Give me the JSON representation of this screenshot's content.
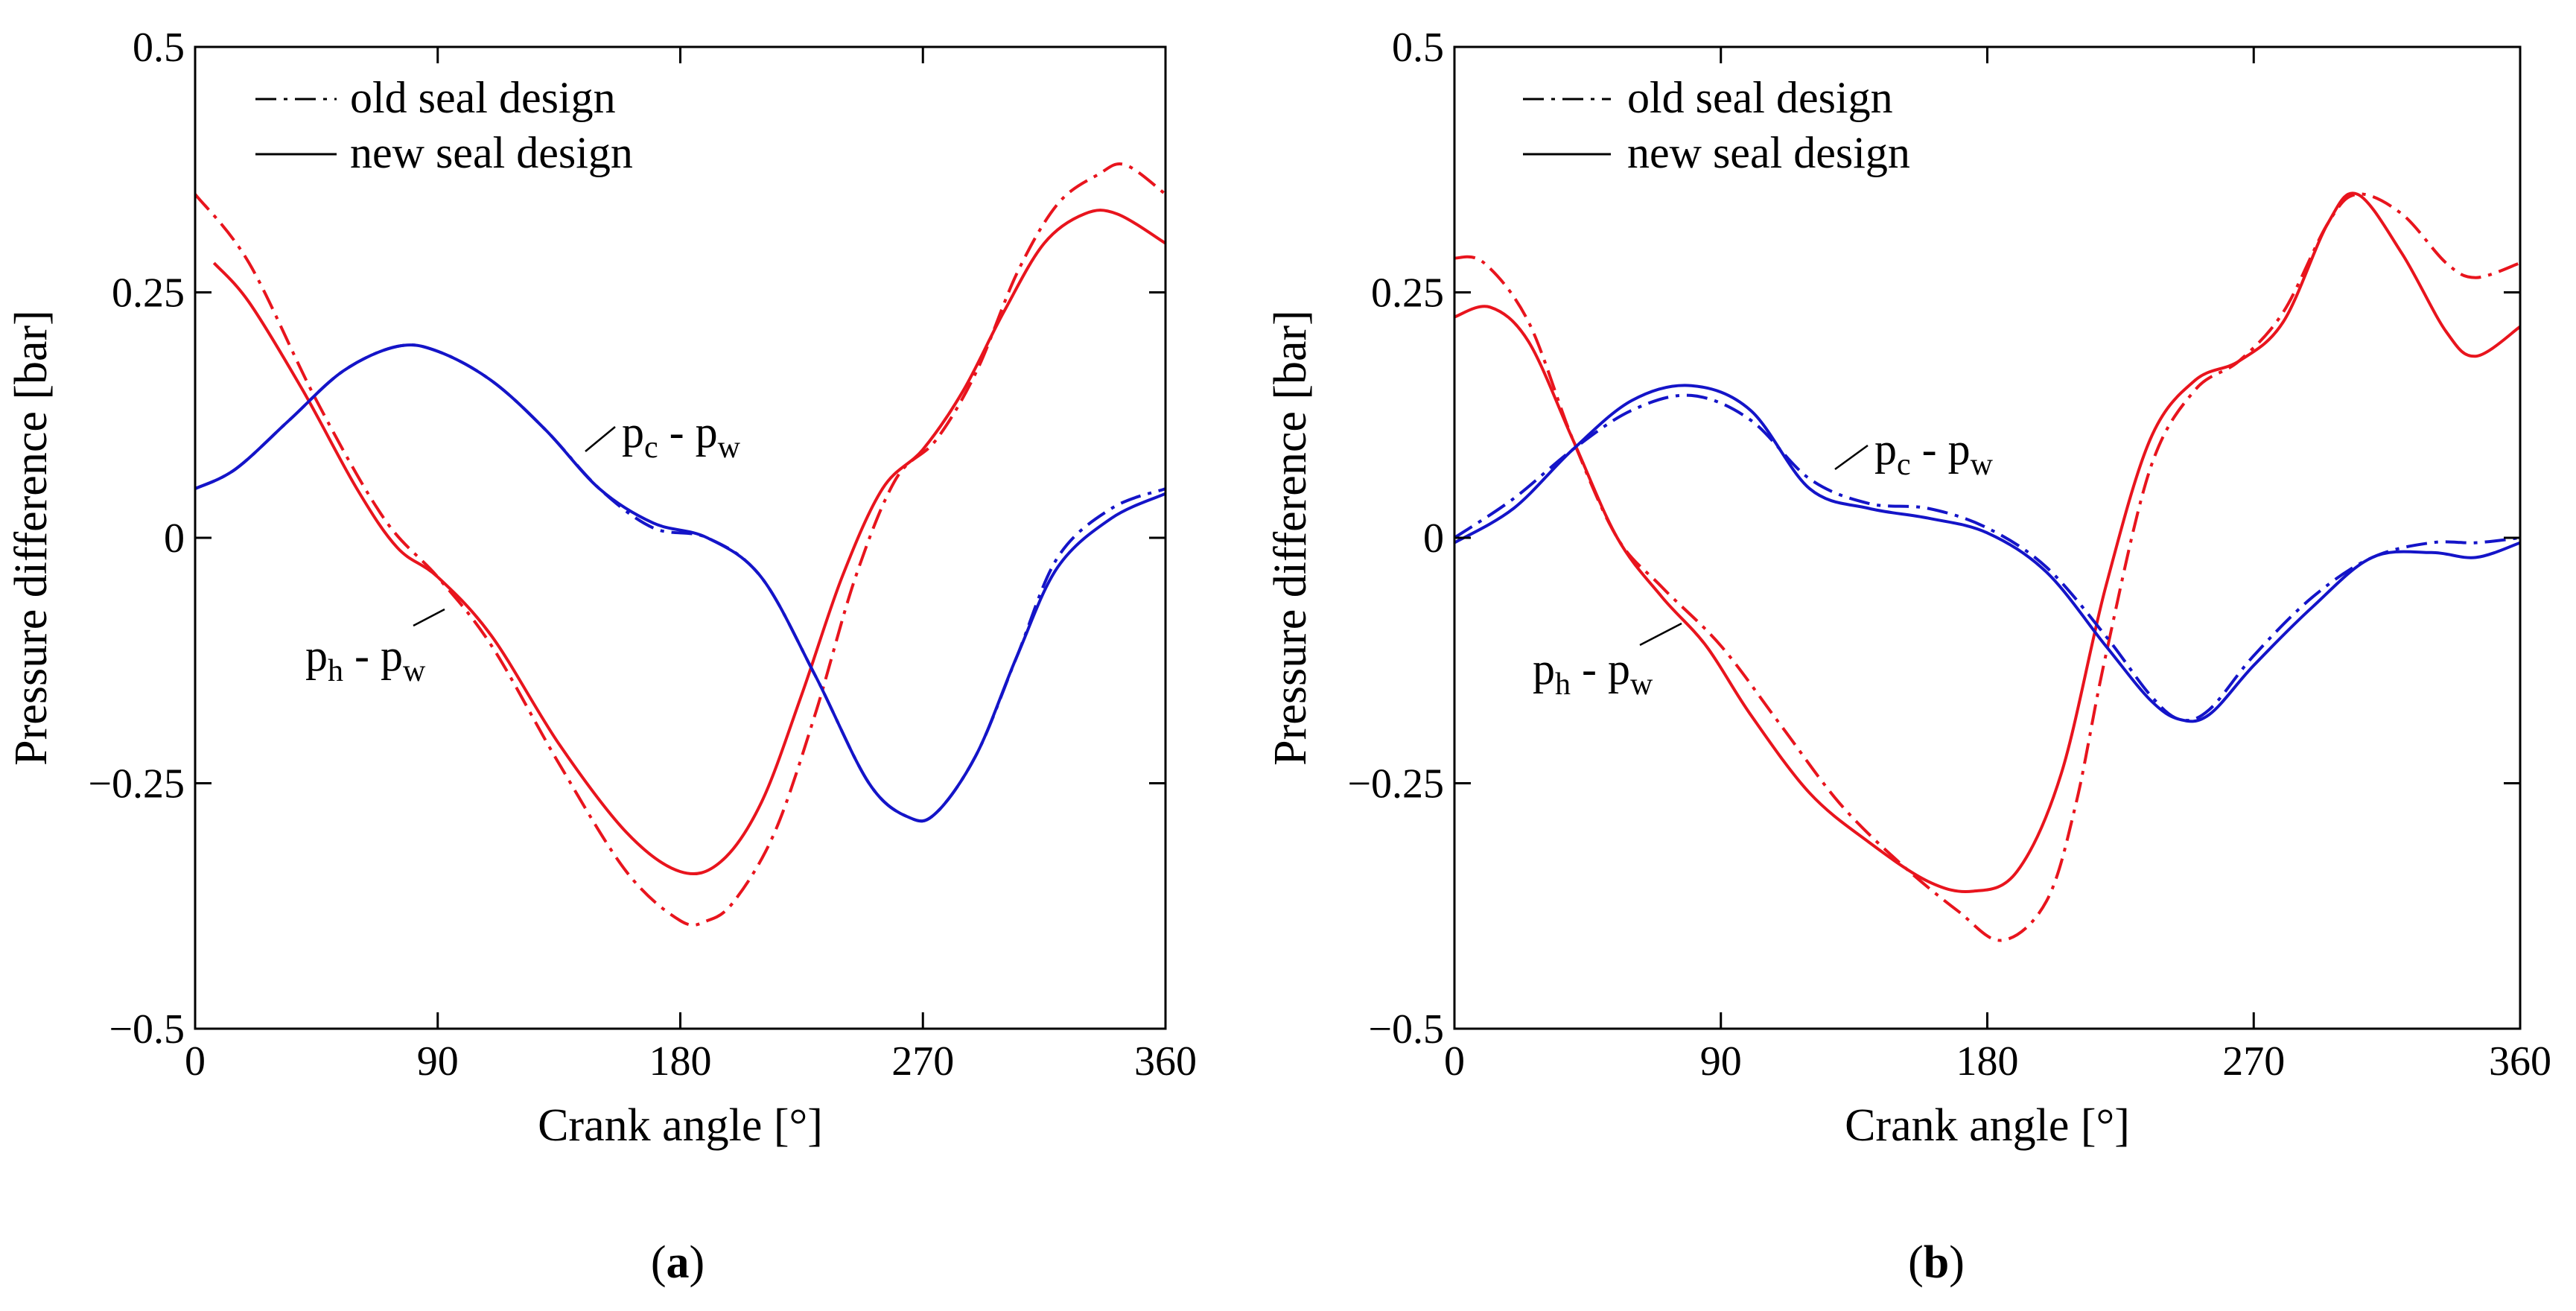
{
  "figure": {
    "panels": [
      {
        "label_open": "(",
        "label_letter": "a",
        "label_close": ")"
      },
      {
        "label_open": "(",
        "label_letter": "b",
        "label_close": ")"
      }
    ]
  },
  "legend": {
    "old_label": "old seal design",
    "new_label": "new seal design"
  },
  "chart_data": [
    {
      "type": "line",
      "title": "",
      "xlabel": "Crank angle [°]",
      "ylabel": "Pressure difference [bar]",
      "xlim": [
        0,
        360
      ],
      "ylim": [
        -0.5,
        0.5
      ],
      "xticks": [
        0,
        90,
        180,
        270,
        360
      ],
      "yticks": [
        -0.5,
        -0.25,
        0,
        0.25,
        0.5
      ],
      "xtick_labels": [
        "0",
        "90",
        "180",
        "270",
        "360"
      ],
      "ytick_labels": [
        "−0.5",
        "−0.25",
        "0",
        "0.25",
        "0.5"
      ],
      "grid": false,
      "legend_position": "top-left",
      "colors": {
        "hot": "#e8141d",
        "cold": "#1414c8"
      },
      "annotations": [
        {
          "main1": "p",
          "sub1": "c",
          "sep": " - ",
          "main2": "p",
          "sub2": "w",
          "target": "pc_minus_pw"
        },
        {
          "main1": "p",
          "sub1": "h",
          "sep": " - ",
          "main2": "p",
          "sub2": "w",
          "target": "ph_minus_pw"
        }
      ],
      "series": [
        {
          "name": "ph - pw old seal design",
          "style": "dashdot",
          "color": "#e8141d",
          "x": [
            0,
            20,
            45,
            70,
            90,
            110,
            135,
            160,
            180,
            190,
            200,
            215,
            230,
            245,
            260,
            275,
            290,
            305,
            320,
            335,
            345,
            360
          ],
          "y": [
            0.35,
            0.28,
            0.14,
            0.02,
            -0.04,
            -0.11,
            -0.23,
            -0.34,
            -0.39,
            -0.39,
            -0.37,
            -0.3,
            -0.18,
            -0.04,
            0.06,
            0.1,
            0.17,
            0.27,
            0.34,
            0.37,
            0.38,
            0.35
          ]
        },
        {
          "name": "ph - pw new seal design",
          "style": "solid",
          "color": "#e8141d",
          "x": [
            7,
            20,
            40,
            60,
            75,
            90,
            110,
            135,
            160,
            180,
            195,
            210,
            225,
            240,
            255,
            270,
            285,
            300,
            315,
            330,
            342,
            360
          ],
          "y": [
            0.28,
            0.24,
            0.15,
            0.05,
            -0.01,
            -0.04,
            -0.1,
            -0.21,
            -0.3,
            -0.34,
            -0.33,
            -0.27,
            -0.16,
            -0.04,
            0.05,
            0.09,
            0.15,
            0.23,
            0.3,
            0.33,
            0.33,
            0.3
          ]
        },
        {
          "name": "pc - pw old seal design",
          "style": "dashdot",
          "color": "#1414c8",
          "x": [
            0,
            15,
            35,
            55,
            75,
            90,
            110,
            130,
            150,
            170,
            190,
            210,
            230,
            250,
            265,
            275,
            290,
            305,
            320,
            340,
            360
          ],
          "y": [
            0.05,
            0.07,
            0.12,
            0.17,
            0.195,
            0.19,
            0.16,
            0.11,
            0.05,
            0.01,
            0.0,
            -0.04,
            -0.14,
            -0.25,
            -0.285,
            -0.28,
            -0.22,
            -0.12,
            -0.02,
            0.03,
            0.05
          ]
        },
        {
          "name": "pc - pw new seal design",
          "style": "solid",
          "color": "#1414c8",
          "x": [
            0,
            15,
            35,
            55,
            75,
            90,
            110,
            130,
            150,
            170,
            190,
            210,
            230,
            250,
            265,
            275,
            290,
            305,
            320,
            340,
            360
          ],
          "y": [
            0.05,
            0.07,
            0.12,
            0.17,
            0.195,
            0.19,
            0.16,
            0.11,
            0.05,
            0.015,
            0.0,
            -0.04,
            -0.14,
            -0.25,
            -0.285,
            -0.28,
            -0.22,
            -0.12,
            -0.03,
            0.02,
            0.045
          ]
        }
      ]
    },
    {
      "type": "line",
      "title": "",
      "xlabel": "Crank angle [°]",
      "ylabel": "Pressure difference [bar]",
      "xlim": [
        0,
        360
      ],
      "ylim": [
        -0.5,
        0.5
      ],
      "xticks": [
        0,
        90,
        180,
        270,
        360
      ],
      "yticks": [
        -0.5,
        -0.25,
        0,
        0.25,
        0.5
      ],
      "xtick_labels": [
        "0",
        "90",
        "180",
        "270",
        "360"
      ],
      "ytick_labels": [
        "−0.5",
        "−0.25",
        "0",
        "0.25",
        "0.5"
      ],
      "grid": false,
      "legend_position": "top-left",
      "colors": {
        "hot": "#e8141d",
        "cold": "#1414c8"
      },
      "annotations": [
        {
          "main1": "p",
          "sub1": "c",
          "sep": " - ",
          "main2": "p",
          "sub2": "w",
          "target": "pc_minus_pw"
        },
        {
          "main1": "p",
          "sub1": "h",
          "sep": " - ",
          "main2": "p",
          "sub2": "w",
          "target": "ph_minus_pw"
        }
      ],
      "series": [
        {
          "name": "ph - pw old seal design",
          "style": "dashdot",
          "color": "#e8141d",
          "x": [
            0,
            10,
            25,
            40,
            55,
            70,
            90,
            110,
            130,
            150,
            170,
            185,
            200,
            210,
            220,
            235,
            250,
            265,
            280,
            295,
            305,
            320,
            335,
            345,
            360
          ],
          "y": [
            0.285,
            0.28,
            0.22,
            0.1,
            0.0,
            -0.05,
            -0.11,
            -0.19,
            -0.27,
            -0.33,
            -0.38,
            -0.41,
            -0.37,
            -0.27,
            -0.12,
            0.07,
            0.15,
            0.18,
            0.23,
            0.32,
            0.35,
            0.33,
            0.28,
            0.265,
            0.28
          ]
        },
        {
          "name": "ph - pw new seal design",
          "style": "solid",
          "color": "#e8141d",
          "x": [
            0,
            12,
            25,
            40,
            55,
            70,
            85,
            100,
            120,
            140,
            160,
            175,
            190,
            205,
            220,
            235,
            250,
            265,
            280,
            295,
            305,
            320,
            335,
            345,
            360
          ],
          "y": [
            0.225,
            0.235,
            0.2,
            0.1,
            0.0,
            -0.06,
            -0.11,
            -0.18,
            -0.26,
            -0.31,
            -0.35,
            -0.36,
            -0.34,
            -0.24,
            -0.05,
            0.1,
            0.16,
            0.18,
            0.22,
            0.32,
            0.35,
            0.29,
            0.21,
            0.185,
            0.215
          ]
        },
        {
          "name": "pc - pw old seal design",
          "style": "dashdot",
          "color": "#1414c8",
          "x": [
            0,
            20,
            40,
            60,
            80,
            100,
            120,
            140,
            160,
            180,
            200,
            220,
            235,
            245,
            255,
            270,
            290,
            310,
            330,
            345,
            360
          ],
          "y": [
            0.0,
            0.04,
            0.09,
            0.13,
            0.145,
            0.12,
            0.06,
            0.035,
            0.03,
            0.01,
            -0.03,
            -0.1,
            -0.16,
            -0.185,
            -0.175,
            -0.12,
            -0.06,
            -0.02,
            -0.005,
            -0.005,
            0.0
          ]
        },
        {
          "name": "pc - pw new seal design",
          "style": "solid",
          "color": "#1414c8",
          "x": [
            0,
            20,
            40,
            60,
            80,
            100,
            120,
            140,
            160,
            180,
            200,
            220,
            235,
            245,
            255,
            270,
            290,
            310,
            330,
            345,
            360
          ],
          "y": [
            -0.005,
            0.03,
            0.09,
            0.14,
            0.155,
            0.13,
            0.05,
            0.03,
            0.02,
            0.005,
            -0.035,
            -0.11,
            -0.165,
            -0.185,
            -0.18,
            -0.13,
            -0.07,
            -0.02,
            -0.015,
            -0.02,
            -0.005
          ]
        }
      ]
    }
  ]
}
